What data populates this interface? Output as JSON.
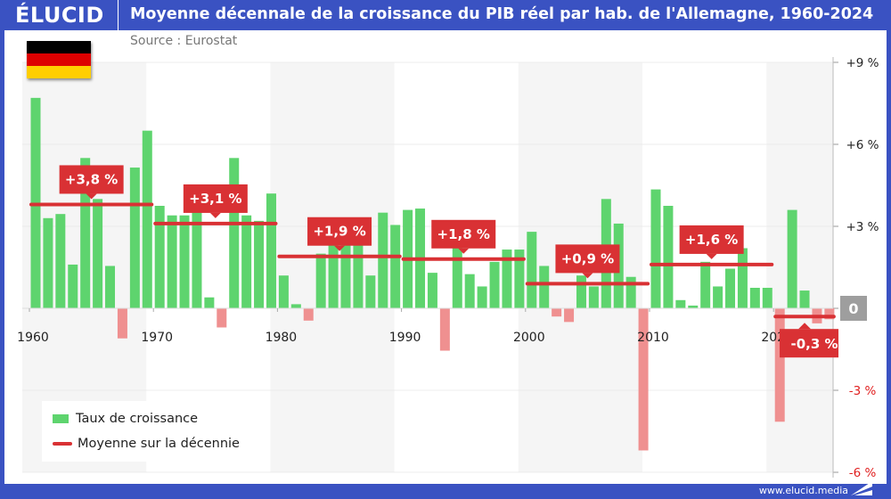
{
  "header": {
    "logo": "ÉLUCID",
    "title": "Moyenne décennale de la croissance du PIB réel par hab. de l'Allemagne, 1960-2024"
  },
  "source": "Source : Eurostat",
  "footer": "www.elucid.media",
  "flag": {
    "country": "Allemagne",
    "colors": [
      "#000000",
      "#dd0000",
      "#ffce00"
    ]
  },
  "colors": {
    "positive": "#5ed46e",
    "negative": "#ef9090",
    "average": "#d93134",
    "frame": "#3a52c2"
  },
  "chart_data": {
    "type": "bar",
    "ylim": [
      -6,
      9
    ],
    "y_ticks": [
      {
        "value": 9,
        "label": "+9 %"
      },
      {
        "value": 6,
        "label": "+6 %"
      },
      {
        "value": 3,
        "label": "+3 %"
      },
      {
        "value": 0,
        "label": "0"
      },
      {
        "value": -3,
        "label": "-3 %"
      },
      {
        "value": -6,
        "label": "-6 %"
      }
    ],
    "x_ticks": [
      "1960",
      "1970",
      "1980",
      "1990",
      "2000",
      "2010",
      "2020"
    ],
    "grid": true,
    "legend": {
      "position": "bottom-left",
      "bars": "Taux de croissance",
      "line": "Moyenne sur la décennie"
    },
    "years": [
      1960,
      1961,
      1962,
      1963,
      1964,
      1965,
      1966,
      1967,
      1968,
      1969,
      1970,
      1971,
      1972,
      1973,
      1974,
      1975,
      1976,
      1977,
      1978,
      1979,
      1980,
      1981,
      1982,
      1983,
      1984,
      1985,
      1986,
      1987,
      1988,
      1989,
      1990,
      1991,
      1992,
      1993,
      1994,
      1995,
      1996,
      1997,
      1998,
      1999,
      2000,
      2001,
      2002,
      2003,
      2004,
      2005,
      2006,
      2007,
      2008,
      2009,
      2010,
      2011,
      2012,
      2013,
      2014,
      2015,
      2016,
      2017,
      2018,
      2019,
      2020,
      2021,
      2022,
      2023,
      2024
    ],
    "values": [
      7.7,
      3.3,
      3.45,
      1.6,
      5.5,
      4.0,
      1.55,
      -1.1,
      5.15,
      6.5,
      3.75,
      3.4,
      3.4,
      3.55,
      0.4,
      -0.7,
      5.5,
      3.4,
      3.2,
      4.2,
      1.2,
      0.15,
      -0.45,
      2.0,
      2.6,
      2.3,
      2.3,
      1.2,
      3.5,
      3.05,
      3.6,
      3.65,
      1.3,
      -1.55,
      2.2,
      1.25,
      0.8,
      1.7,
      2.15,
      2.15,
      2.8,
      1.55,
      -0.3,
      -0.5,
      1.2,
      0.8,
      4.0,
      3.1,
      1.15,
      -5.2,
      4.35,
      3.75,
      0.3,
      0.1,
      1.7,
      0.8,
      1.45,
      2.2,
      0.75,
      0.75,
      -4.15,
      3.6,
      0.65,
      -0.55,
      -0.4
    ],
    "decade_averages": [
      {
        "start": 1960,
        "end": 1969,
        "value": 3.8,
        "label": "+3,8 %"
      },
      {
        "start": 1970,
        "end": 1979,
        "value": 3.1,
        "label": "+3,1 %"
      },
      {
        "start": 1980,
        "end": 1989,
        "value": 1.9,
        "label": "+1,9 %"
      },
      {
        "start": 1990,
        "end": 1999,
        "value": 1.8,
        "label": "+1,8 %"
      },
      {
        "start": 2000,
        "end": 2009,
        "value": 0.9,
        "label": "+0,9 %"
      },
      {
        "start": 2010,
        "end": 2019,
        "value": 1.6,
        "label": "+1,6 %"
      },
      {
        "start": 2020,
        "end": 2024,
        "value": -0.3,
        "label": "-0,3 %"
      }
    ]
  }
}
